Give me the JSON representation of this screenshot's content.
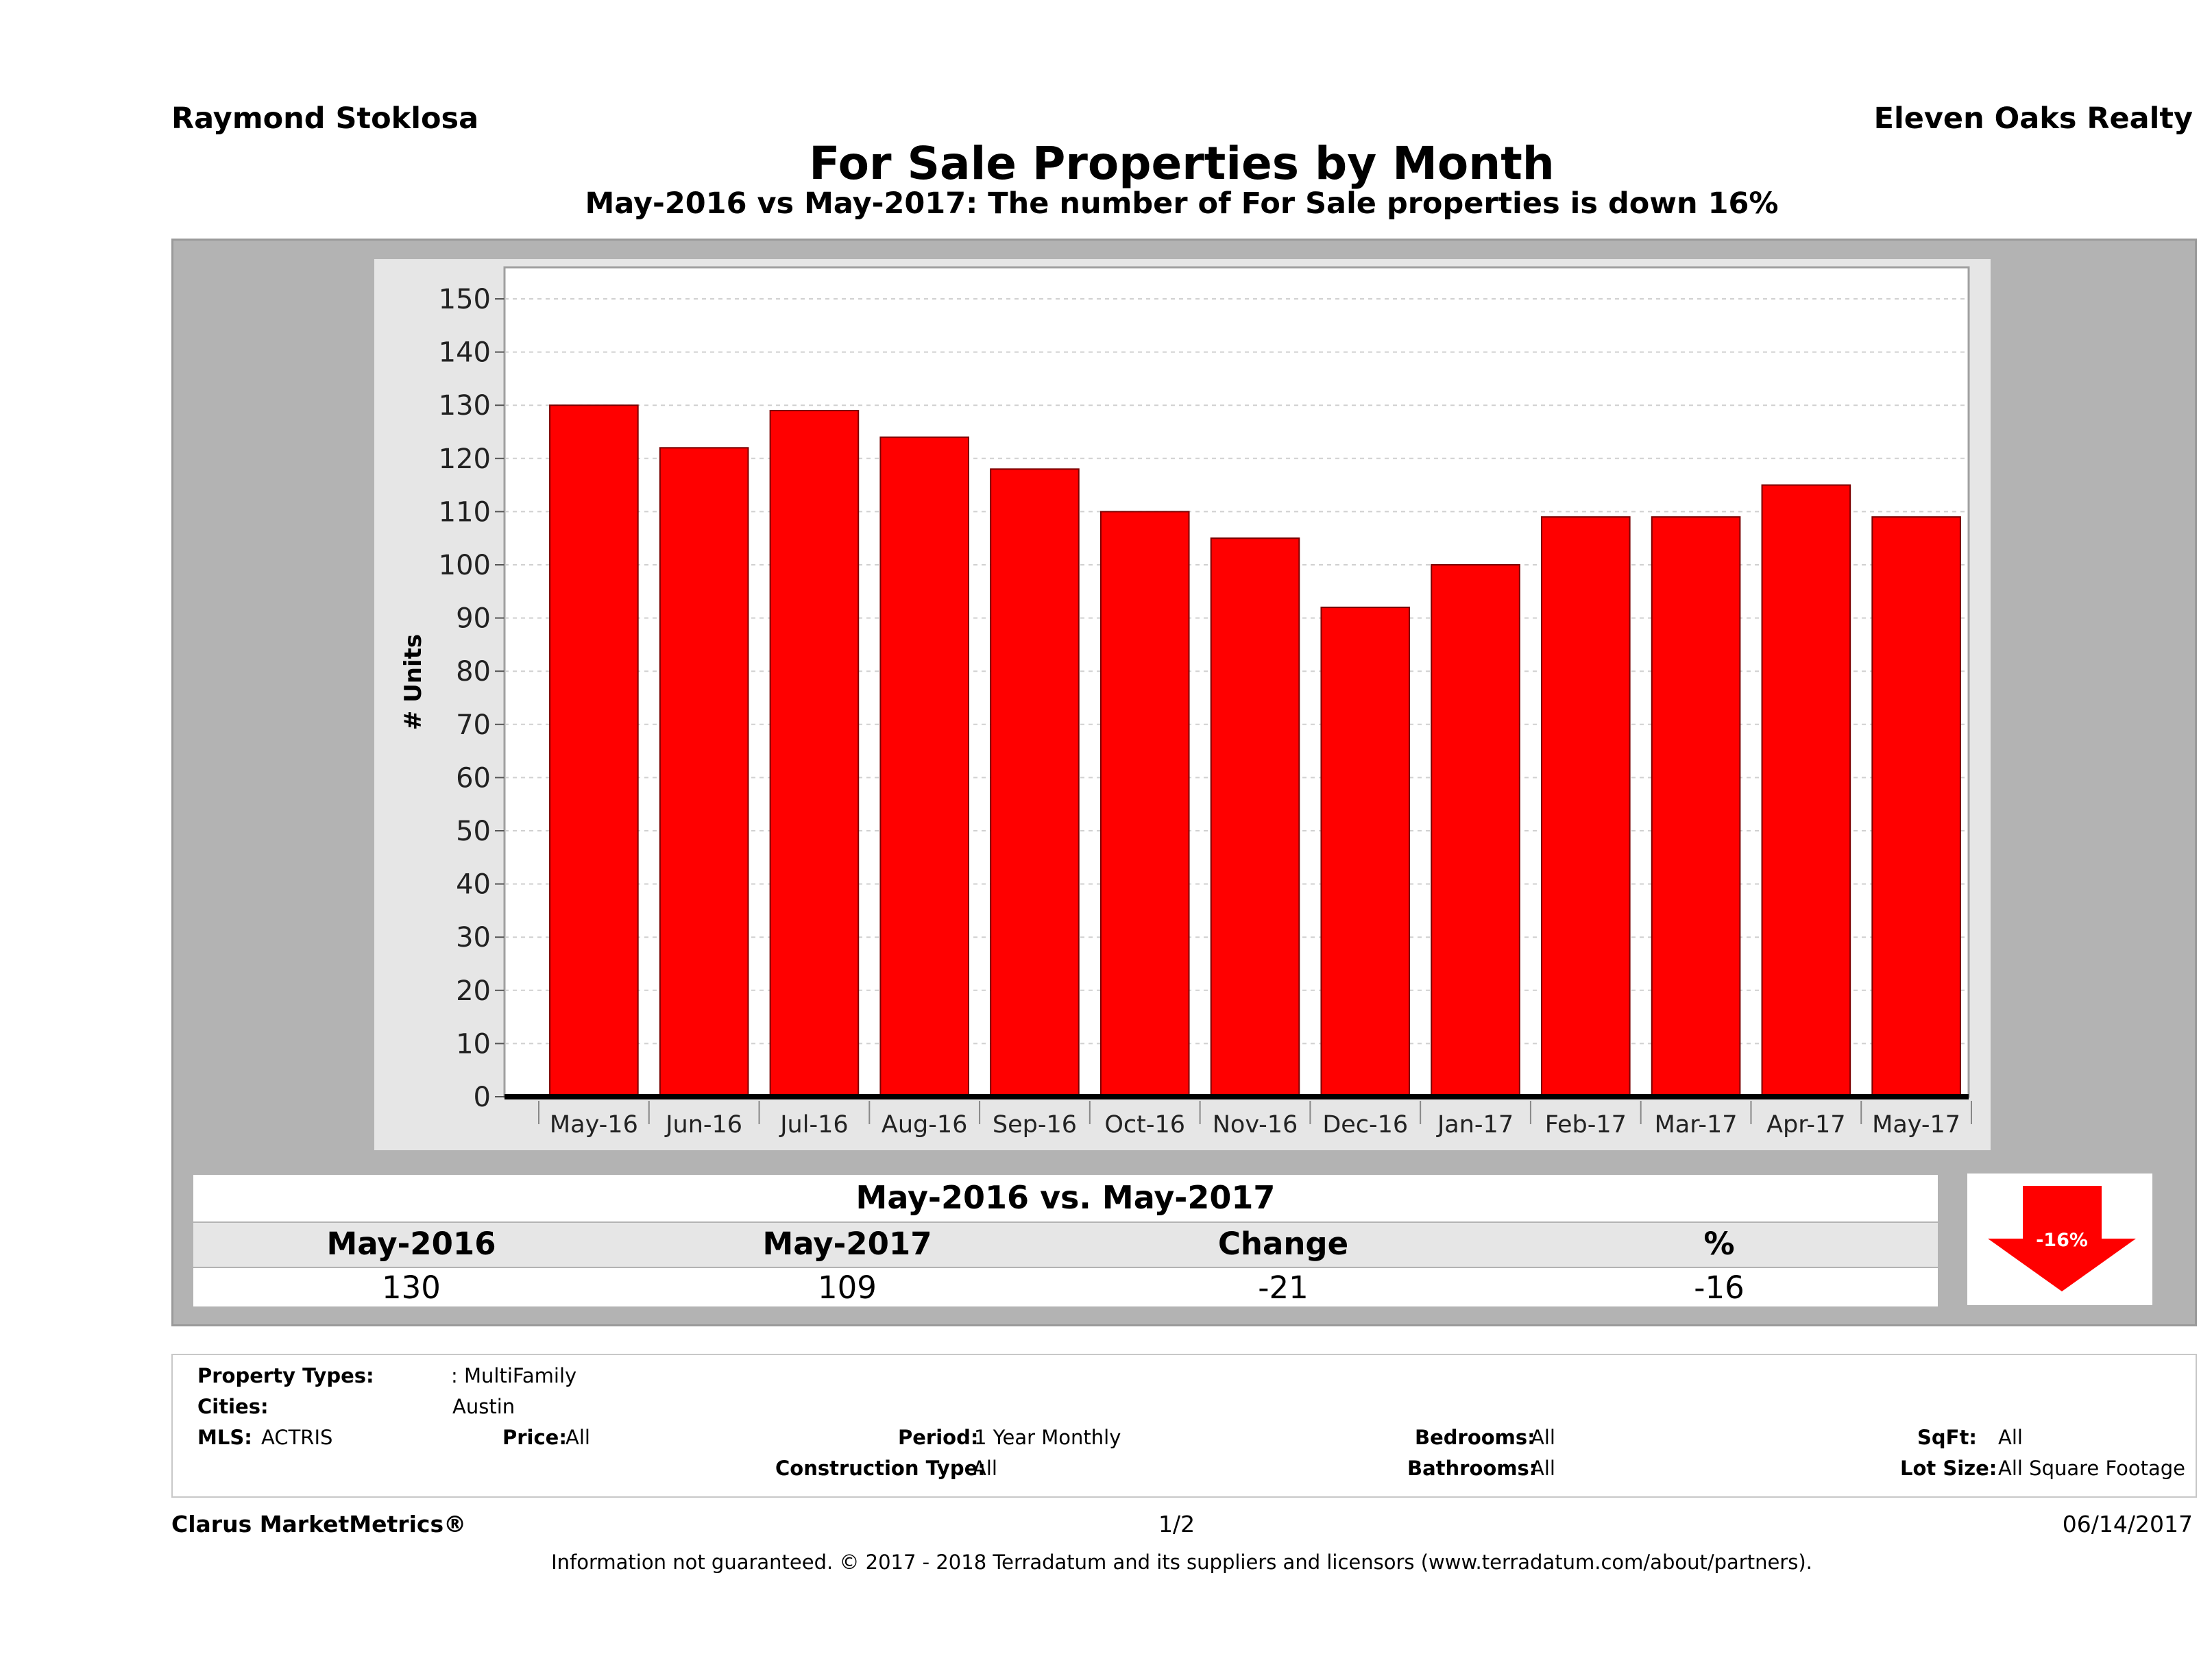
{
  "header": {
    "agent": "Raymond Stoklosa",
    "brokerage": "Eleven Oaks Realty",
    "title": "For Sale Properties by Month",
    "subtitle": "May-2016 vs May-2017: The number of For Sale  properties is down 16%"
  },
  "chart_data": {
    "type": "bar",
    "categories": [
      "May-16",
      "Jun-16",
      "Jul-16",
      "Aug-16",
      "Sep-16",
      "Oct-16",
      "Nov-16",
      "Dec-16",
      "Jan-17",
      "Feb-17",
      "Mar-17",
      "Apr-17",
      "May-17"
    ],
    "values": [
      130,
      122,
      129,
      124,
      118,
      110,
      105,
      92,
      100,
      109,
      109,
      115,
      109
    ],
    "title": "",
    "xlabel": "",
    "ylabel": "# Units",
    "ylim": [
      0,
      155
    ],
    "yticks": [
      0,
      10,
      20,
      30,
      40,
      50,
      60,
      70,
      80,
      90,
      100,
      110,
      120,
      130,
      140,
      150
    ],
    "grid": true,
    "bar_color": "#ff0000"
  },
  "summary": {
    "title": "May-2016 vs. May-2017",
    "headers": [
      "May-2016",
      "May-2017",
      "Change",
      "%"
    ],
    "values": [
      "130",
      "109",
      "-21",
      "-16"
    ],
    "badge": "-16%",
    "badge_color": "#ff0000",
    "badge_icon": "down-arrow-icon"
  },
  "filters": {
    "property_types_label": "Property Types:",
    "property_types_value": ": MultiFamily",
    "cities_label": "Cities:",
    "cities_value": "Austin",
    "mls_label": "MLS:",
    "mls_value": "ACTRIS",
    "price_label": "Price:",
    "price_value": "All",
    "period_label": "Period:",
    "period_value": "1 Year Monthly",
    "construction_label": "Construction Type:",
    "construction_value": "All",
    "bedrooms_label": "Bedrooms:",
    "bedrooms_value": "All",
    "bathrooms_label": "Bathrooms:",
    "bathrooms_value": "All",
    "sqft_label": "SqFt:",
    "sqft_value": "All",
    "lot_label": "Lot Size:",
    "lot_value": "All Square Footage"
  },
  "footer": {
    "brand": "Clarus MarketMetrics®",
    "page": "1/2",
    "date": "06/14/2017",
    "disclaimer": "Information not guaranteed. © 2017 - 2018 Terradatum and its suppliers and licensors (www.terradatum.com/about/partners)."
  }
}
